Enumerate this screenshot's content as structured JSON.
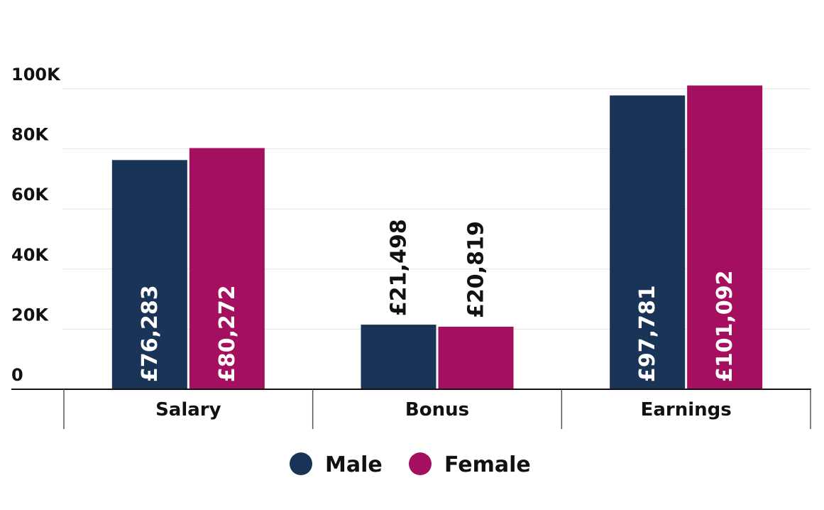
{
  "chart_data": {
    "type": "bar",
    "categories": [
      "Salary",
      "Bonus",
      "Earnings"
    ],
    "series": [
      {
        "name": "Male",
        "color": "#1a3457",
        "values": [
          76283,
          21498,
          97781
        ],
        "labels": [
          "£76,283",
          "£21,498",
          "£97,781"
        ]
      },
      {
        "name": "Female",
        "color": "#a50f5f",
        "values": [
          80272,
          20819,
          101092
        ],
        "labels": [
          "£80,272",
          "£20,819",
          "£101,092"
        ]
      }
    ],
    "ylim": [
      0,
      100000
    ],
    "yticks": [
      0,
      20000,
      40000,
      60000,
      80000,
      100000
    ],
    "ytick_labels": [
      "0",
      "20K",
      "40K",
      "60K",
      "80K",
      "100K"
    ],
    "title": "",
    "xlabel": "",
    "ylabel": "",
    "grid": true,
    "legend_position": "bottom-center"
  }
}
